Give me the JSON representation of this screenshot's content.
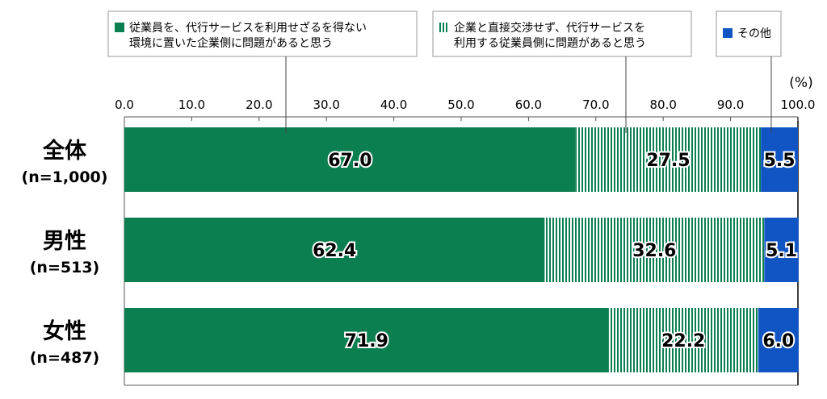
{
  "chart_data": {
    "type": "bar",
    "orientation": "horizontal",
    "stacked": true,
    "unit_label": "(%)",
    "xlim": [
      0,
      100
    ],
    "ticks": [
      "0.0",
      "10.0",
      "20.0",
      "30.0",
      "40.0",
      "50.0",
      "60.0",
      "70.0",
      "80.0",
      "90.0",
      "100.0"
    ],
    "categories": [
      {
        "label": "全体",
        "n": "(n=1,000)"
      },
      {
        "label": "男性",
        "n": "(n=513)"
      },
      {
        "label": "女性",
        "n": "(n=487)"
      }
    ],
    "series": [
      {
        "name": "従業員を、代行サービスを利用せざるを得ない環境に置いた企業側に問題があると思う",
        "name_lines": [
          "従業員を、代行サービスを利用せざるを得ない",
          "環境に置いた企業側に問題があると思う"
        ],
        "color": "#0b7f4f",
        "pattern": "solid",
        "values": [
          67.0,
          62.4,
          71.9
        ],
        "labels": [
          "67.0",
          "62.4",
          "71.9"
        ]
      },
      {
        "name": "企業と直接交渉せず、代行サービスを利用する従業員側に問題があると思う",
        "name_lines": [
          "企業と直接交渉せず、代行サービスを",
          "利用する従業員側に問題があると思う"
        ],
        "color": "#0b7f4f",
        "pattern": "vertical-stripes",
        "values": [
          27.5,
          32.6,
          22.2
        ],
        "labels": [
          "27.5",
          "32.6",
          "22.2"
        ]
      },
      {
        "name": "その他",
        "name_lines": [
          "その他"
        ],
        "color": "#1155c4",
        "pattern": "solid",
        "values": [
          5.5,
          5.1,
          6.0
        ],
        "labels": [
          "5.5",
          "5.1",
          "6.0"
        ]
      }
    ],
    "legend": "top, callout boxes",
    "grid": false
  }
}
